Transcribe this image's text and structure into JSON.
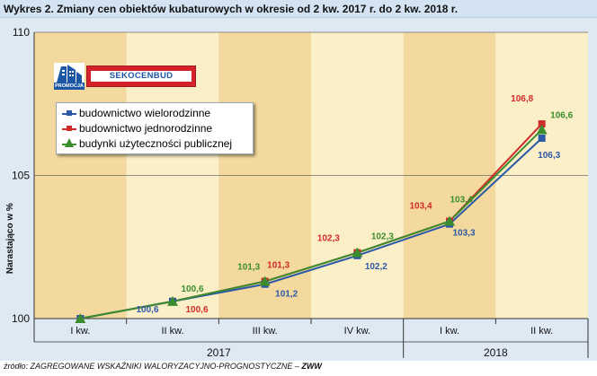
{
  "figure": {
    "title": "Wykres 2.  Zmiany cen obiektów kubaturowych w okresie od 2 kw. 2017 r. do 2 kw. 2018 r.",
    "source_prefix": "źródło: ZAGREGOWANE WSKAŹNIKI WALORYZACYJNO-PROGNOSTYCZNE – ",
    "source_bold": "ZWW"
  },
  "logo": {
    "brand": "SEKOCENBUD",
    "caption": "PROMOCJA"
  },
  "colors": {
    "wielorodzinne": "#2c58a8",
    "jednorodzinne": "#d12a2a",
    "uzytecznosci": "#3a8c2d",
    "band_light": "#fbefc7",
    "band_dark": "#f3d99e"
  },
  "chart_data": {
    "type": "line",
    "title": "",
    "xlabel": "",
    "ylabel": "Narastająco w %",
    "categories": [
      "I kw.",
      "II kw.",
      "III kw.",
      "IV kw.",
      "I kw.",
      "II kw."
    ],
    "year_groups": [
      {
        "label": "2017",
        "from": 0,
        "to": 3
      },
      {
        "label": "2018",
        "from": 4,
        "to": 5
      }
    ],
    "ylim": [
      100,
      110
    ],
    "yticks": [
      100,
      105,
      110
    ],
    "legend_position": "top-left",
    "grid": true,
    "series": [
      {
        "name": "budownictwo wielorodzinne",
        "marker": "square",
        "color": "#2c58a8",
        "values": [
          100,
          100.6,
          101.2,
          102.2,
          103.3,
          106.3
        ],
        "labels": [
          "",
          "100,6",
          "101,2",
          "102,2",
          "103,3",
          "106,3"
        ]
      },
      {
        "name": "budownictwo jednorodzinne",
        "marker": "square",
        "color": "#d12a2a",
        "values": [
          100,
          100.6,
          101.3,
          102.3,
          103.4,
          106.8
        ],
        "labels": [
          "",
          "100,6",
          "101,3",
          "102,3",
          "103,4",
          "106,8"
        ]
      },
      {
        "name": "budynki użyteczności publicznej",
        "marker": "triangle",
        "color": "#3a8c2d",
        "values": [
          100,
          100.6,
          101.3,
          102.3,
          103.4,
          106.6
        ],
        "labels": [
          "",
          "100,6",
          "101,3",
          "102,3",
          "103,4",
          "106,6"
        ]
      }
    ]
  }
}
